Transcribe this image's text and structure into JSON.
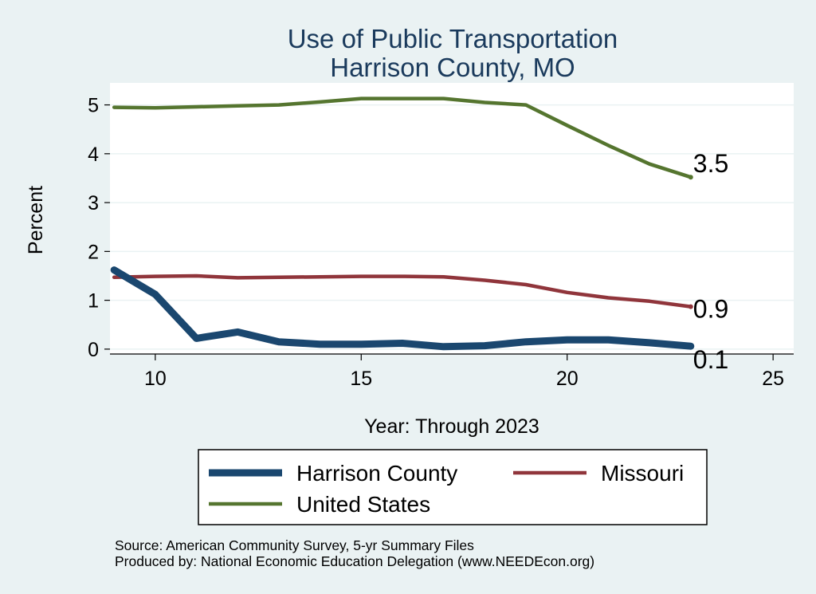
{
  "chart_data": {
    "type": "line",
    "title": [
      "Use of Public Transportation",
      "Harrison County, MO"
    ],
    "xlabel": "Year: Through 2023",
    "ylabel": "Percent",
    "xlim": [
      8.9,
      25.5
    ],
    "ylim": [
      -0.1,
      5.45
    ],
    "xticks": [
      10,
      15,
      20,
      25
    ],
    "yticks": [
      0,
      1,
      2,
      3,
      4,
      5
    ],
    "grid": "horizontal",
    "legend": "bottom",
    "x": [
      9,
      10,
      11,
      12,
      13,
      14,
      15,
      16,
      17,
      18,
      19,
      20,
      21,
      22,
      23
    ],
    "series": [
      {
        "name": "Harrison County",
        "color": "#1a476f",
        "width": 9,
        "values": [
          1.62,
          1.12,
          0.22,
          0.35,
          0.15,
          0.1,
          0.1,
          0.12,
          0.05,
          0.07,
          0.15,
          0.19,
          0.19,
          0.13,
          0.06
        ],
        "end_label": "0.1"
      },
      {
        "name": "Missouri",
        "color": "#90353b",
        "width": 4.5,
        "values": [
          1.47,
          1.49,
          1.5,
          1.46,
          1.47,
          1.48,
          1.49,
          1.49,
          1.48,
          1.41,
          1.32,
          1.16,
          1.05,
          0.98,
          0.87
        ],
        "end_label": "0.9"
      },
      {
        "name": "United States",
        "color": "#55752f",
        "width": 4.5,
        "values": [
          4.95,
          4.94,
          4.96,
          4.98,
          5.0,
          5.06,
          5.13,
          5.13,
          5.13,
          5.05,
          5.0,
          4.58,
          4.17,
          3.79,
          3.52
        ],
        "end_label": "3.5"
      }
    ],
    "source": [
      "Source: American Community Survey, 5-yr Summary Files",
      "Produced by: National Economic Education Delegation (www.NEEDEcon.org)"
    ]
  }
}
